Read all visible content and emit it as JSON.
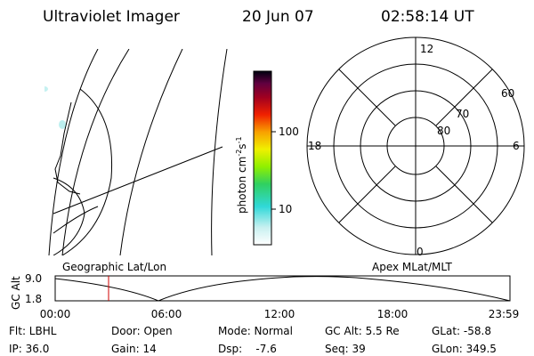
{
  "header": {
    "title": "Ultraviolet Imager",
    "date": "20 Jun 07",
    "time": "02:58:14 UT"
  },
  "colorbar": {
    "label_parts": [
      "photon cm",
      "-2",
      "s",
      "-1"
    ],
    "ticks": [
      "100",
      "10"
    ]
  },
  "polar": {
    "mlt_labels": [
      "12",
      "18",
      "6",
      "0"
    ],
    "lat_labels": [
      "60",
      "70",
      "80"
    ]
  },
  "altitude_plot": {
    "ylabel": "GC Alt",
    "yticks": [
      "9.0",
      "1.8"
    ],
    "left_title": "Geographic Lat/Lon",
    "right_title": "Apex MLat/MLT",
    "xticks": [
      "00:00",
      "06:00",
      "12:00",
      "18:00",
      "23:59"
    ]
  },
  "info": {
    "rows": [
      [
        "Flt: LBHL",
        "Door: Open",
        "Mode: Normal",
        "GC Alt: 5.5 Re",
        "GLat: -58.8"
      ],
      [
        "IP: 36.0",
        "Gain: 14",
        "Dsp:    -7.6",
        "Seq: 39",
        "GLon: 349.5"
      ]
    ]
  }
}
